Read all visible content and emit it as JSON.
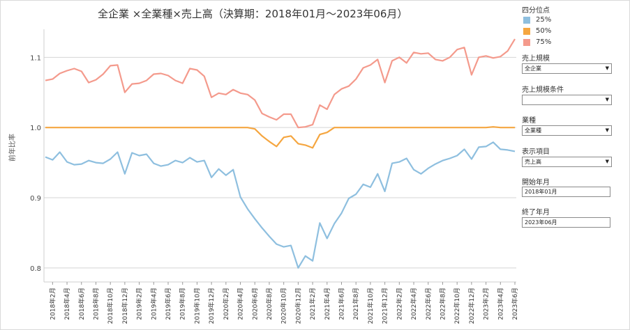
{
  "chart_data": {
    "type": "line",
    "title": "全企業 ×全業種×売上高（決算期：2018年01月～2023年06月）",
    "ylabel": "前年比率",
    "ylim": [
      0.78,
      1.14
    ],
    "yticks": [
      0.8,
      0.9,
      1.0,
      1.1
    ],
    "ytick_labels": [
      "0.8",
      "0.9",
      "1.0",
      "1.1"
    ],
    "grid": true,
    "legend_position": "right",
    "legend_title": "四分位点",
    "categories": [
      "2018年1月",
      "2018年2月",
      "2018年3月",
      "2018年4月",
      "2018年5月",
      "2018年6月",
      "2018年7月",
      "2018年8月",
      "2018年9月",
      "2018年10月",
      "2018年11月",
      "2018年12月",
      "2019年1月",
      "2019年2月",
      "2019年3月",
      "2019年4月",
      "2019年5月",
      "2019年6月",
      "2019年7月",
      "2019年8月",
      "2019年9月",
      "2019年10月",
      "2019年11月",
      "2019年12月",
      "2020年1月",
      "2020年2月",
      "2020年3月",
      "2020年4月",
      "2020年5月",
      "2020年6月",
      "2020年7月",
      "2020年8月",
      "2020年9月",
      "2020年10月",
      "2020年11月",
      "2020年12月",
      "2021年1月",
      "2021年2月",
      "2021年3月",
      "2021年4月",
      "2021年5月",
      "2021年6月",
      "2021年7月",
      "2021年8月",
      "2021年9月",
      "2021年10月",
      "2021年11月",
      "2021年12月",
      "2022年1月",
      "2022年2月",
      "2022年3月",
      "2022年4月",
      "2022年5月",
      "2022年6月",
      "2022年7月",
      "2022年8月",
      "2022年9月",
      "2022年10月",
      "2022年11月",
      "2022年12月",
      "2023年1月",
      "2023年2月",
      "2023年3月",
      "2023年4月",
      "2023年5月",
      "2023年6月"
    ],
    "xtick_labels": [
      "2018年2月",
      "2018年4月",
      "2018年6月",
      "2018年8月",
      "2018年10月",
      "2018年12月",
      "2019年2月",
      "2019年4月",
      "2019年6月",
      "2019年8月",
      "2019年10月",
      "2019年12月",
      "2020年2月",
      "2020年4月",
      "2020年6月",
      "2020年8月",
      "2020年10月",
      "2020年12月",
      "2021年2月",
      "2021年4月",
      "2021年6月",
      "2021年8月",
      "2021年10月",
      "2021年12月",
      "2022年2月",
      "2022年4月",
      "2022年6月",
      "2022年8月",
      "2022年10月",
      "2022年12月",
      "2023年2月",
      "2023年4月",
      "2023年6月"
    ],
    "series": [
      {
        "name": "25%",
        "color": "#8ebfdf",
        "values": [
          0.958,
          0.954,
          0.965,
          0.951,
          0.947,
          0.948,
          0.953,
          0.95,
          0.949,
          0.955,
          0.965,
          0.934,
          0.964,
          0.96,
          0.962,
          0.949,
          0.945,
          0.947,
          0.953,
          0.95,
          0.957,
          0.951,
          0.953,
          0.929,
          0.941,
          0.932,
          0.94,
          0.901,
          0.884,
          0.87,
          0.857,
          0.845,
          0.834,
          0.83,
          0.832,
          0.8,
          0.817,
          0.81,
          0.864,
          0.842,
          0.863,
          0.878,
          0.899,
          0.905,
          0.919,
          0.915,
          0.934,
          0.909,
          0.949,
          0.951,
          0.956,
          0.94,
          0.934,
          0.942,
          0.948,
          0.953,
          0.956,
          0.96,
          0.969,
          0.955,
          0.972,
          0.973,
          0.979,
          0.969,
          0.968,
          0.966
        ]
      },
      {
        "name": "50%",
        "color": "#f5a640",
        "values": [
          1.0,
          1.0,
          1.0,
          1.0,
          1.0,
          1.0,
          1.0,
          1.0,
          1.0,
          1.0,
          1.0,
          1.0,
          1.0,
          1.0,
          1.0,
          1.0,
          1.0,
          1.0,
          1.0,
          1.0,
          1.0,
          1.0,
          1.0,
          1.0,
          1.0,
          1.0,
          1.0,
          1.0,
          1.0,
          0.998,
          0.988,
          0.98,
          0.973,
          0.986,
          0.988,
          0.977,
          0.975,
          0.971,
          0.99,
          0.993,
          1.0,
          1.0,
          1.0,
          1.0,
          1.0,
          1.0,
          1.0,
          1.0,
          1.0,
          1.0,
          1.0,
          1.0,
          1.0,
          1.0,
          1.0,
          1.0,
          1.0,
          1.0,
          1.0,
          1.0,
          1.0,
          1.0,
          1.001,
          1.0,
          1.0,
          1.0
        ]
      },
      {
        "name": "75%",
        "color": "#f49a8c",
        "values": [
          1.067,
          1.069,
          1.077,
          1.081,
          1.084,
          1.08,
          1.064,
          1.068,
          1.076,
          1.088,
          1.089,
          1.05,
          1.062,
          1.063,
          1.067,
          1.076,
          1.077,
          1.074,
          1.067,
          1.063,
          1.084,
          1.082,
          1.073,
          1.043,
          1.049,
          1.047,
          1.054,
          1.049,
          1.047,
          1.039,
          1.02,
          1.015,
          1.011,
          1.019,
          1.019,
          1.0,
          1.001,
          1.004,
          1.032,
          1.026,
          1.047,
          1.055,
          1.059,
          1.069,
          1.085,
          1.089,
          1.097,
          1.064,
          1.095,
          1.1,
          1.092,
          1.107,
          1.105,
          1.106,
          1.097,
          1.095,
          1.1,
          1.111,
          1.114,
          1.075,
          1.1,
          1.102,
          1.099,
          1.101,
          1.109,
          1.126
        ]
      }
    ]
  },
  "controls": {
    "size_label": "売上規模",
    "size_value": "全企業",
    "size_cond_label": "売上規模条件",
    "size_cond_value": "",
    "industry_label": "業種",
    "industry_value": "全業種",
    "display_label": "表示項目",
    "display_value": "売上高",
    "start_label": "開始年月",
    "start_value": "2018年01月",
    "end_label": "終了年月",
    "end_value": "2023年06月",
    "dropdown_arrow": "▼"
  }
}
